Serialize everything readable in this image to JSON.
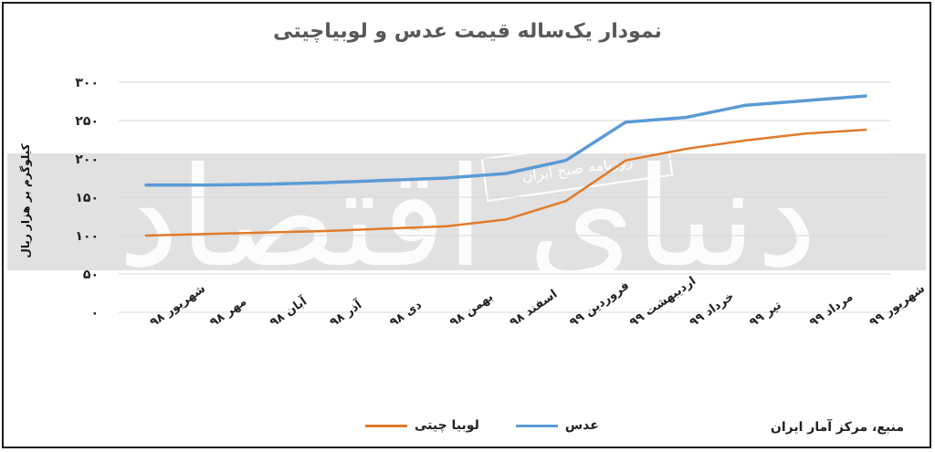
{
  "title": "نمودار یک‌ساله قیمت عدس و لوبیاچیتی",
  "source": "منبع، مرکز آمار ایران",
  "watermark": {
    "brand": "دنیای اقتصاد",
    "secondary": "روزنامه صبح ایران"
  },
  "colors": {
    "lentil": "#5b9bd5",
    "bean": "#e07b2a",
    "grid": "#d9d9d9",
    "band": "#dcdcdc"
  },
  "chart_data": {
    "type": "line",
    "title": "نمودار یک‌ساله قیمت عدس و لوبیاچیتی",
    "ylabel": "کیلوگرم بر هزار ریال",
    "ylim": [
      0,
      300
    ],
    "yticks": [
      "۰",
      "۵۰",
      "۱۰۰",
      "۱۵۰",
      "۲۰۰",
      "۲۵۰",
      "۳۰۰"
    ],
    "ytick_values": [
      0,
      50,
      100,
      150,
      200,
      250,
      300
    ],
    "categories": [
      "شهریور ۹۸",
      "مهر ۹۸",
      "آبان ۹۸",
      "آذر ۹۸",
      "دی ۹۸",
      "بهمن ۹۸",
      "اسفند ۹۸",
      "فروردین ۹۹",
      "اردیبهشت ۹۹",
      "خرداد ۹۹",
      "تیر ۹۹",
      "مرداد ۹۹",
      "شهریور ۹۹"
    ],
    "series": [
      {
        "name": "عدس",
        "color": "#5b9bd5",
        "values": [
          166,
          166,
          167,
          169,
          172,
          175,
          181,
          198,
          248,
          254,
          270,
          276,
          282
        ]
      },
      {
        "name": "لوبیا چیتی",
        "color": "#e07b2a",
        "values": [
          100,
          102,
          104,
          106,
          109,
          112,
          121,
          145,
          198,
          213,
          224,
          233,
          238
        ]
      }
    ],
    "grid": true,
    "legend_position": "bottom"
  }
}
